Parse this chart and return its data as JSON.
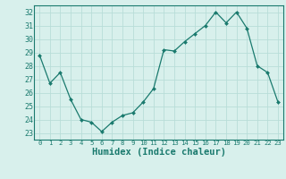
{
  "x": [
    0,
    1,
    2,
    3,
    4,
    5,
    6,
    7,
    8,
    9,
    10,
    11,
    12,
    13,
    14,
    15,
    16,
    17,
    18,
    19,
    20,
    21,
    22,
    23
  ],
  "y": [
    28.8,
    26.7,
    27.5,
    25.5,
    24.0,
    23.8,
    23.1,
    23.8,
    24.3,
    24.5,
    25.3,
    26.3,
    29.2,
    29.1,
    29.8,
    30.4,
    31.0,
    32.0,
    31.2,
    32.0,
    30.8,
    28.0,
    27.5,
    25.3
  ],
  "xlim": [
    -0.5,
    23.5
  ],
  "ylim": [
    22.5,
    32.5
  ],
  "yticks": [
    23,
    24,
    25,
    26,
    27,
    28,
    29,
    30,
    31,
    32
  ],
  "xticks": [
    0,
    1,
    2,
    3,
    4,
    5,
    6,
    7,
    8,
    9,
    10,
    11,
    12,
    13,
    14,
    15,
    16,
    17,
    18,
    19,
    20,
    21,
    22,
    23
  ],
  "xlabel": "Humidex (Indice chaleur)",
  "line_color": "#1a7a6e",
  "marker_color": "#1a7a6e",
  "bg_color": "#d8f0ec",
  "grid_color": "#b8ddd8",
  "axis_label_color": "#1a7a6e",
  "tick_color": "#1a7a6e",
  "xlabel_fontsize": 7.5,
  "ytick_fontsize": 6.0,
  "xtick_fontsize": 5.2
}
